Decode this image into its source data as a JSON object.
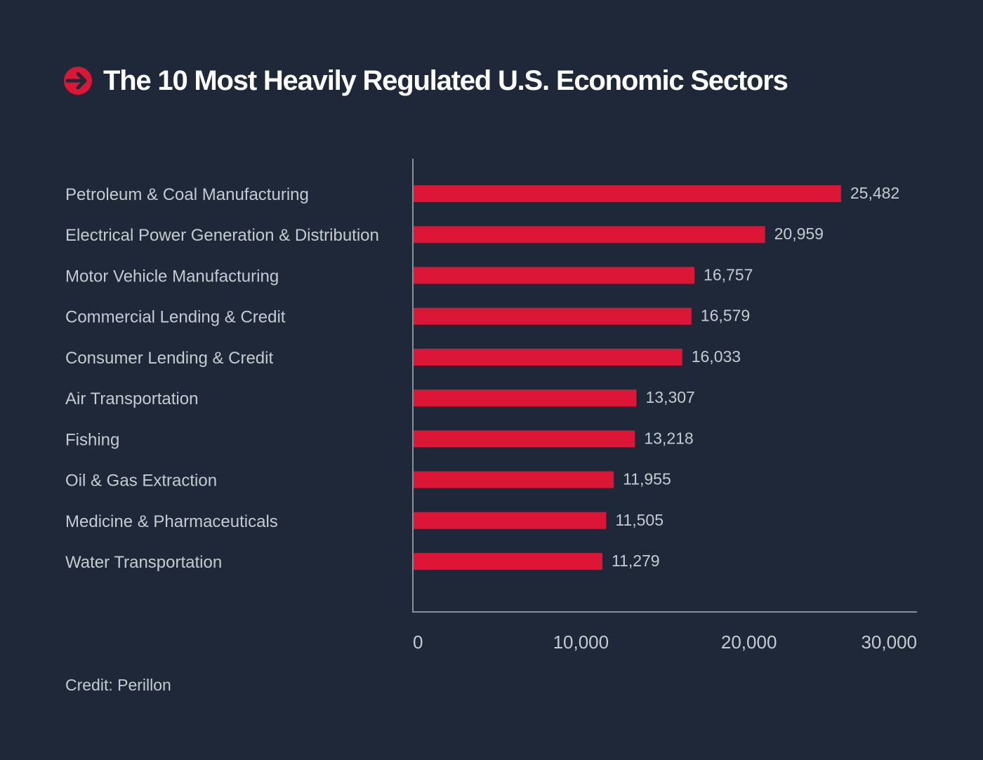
{
  "colors": {
    "background": "#1e2838",
    "bar": "#dc1637",
    "text": "#c5cad3",
    "title": "#ffffff",
    "axis": "#8a909a"
  },
  "header": {
    "icon": "arrow-right-circle-icon",
    "title": "The 10 Most Heavily Regulated U.S. Economic Sectors"
  },
  "footer": {
    "credit": "Credit: Perillon"
  },
  "chart_data": {
    "type": "bar",
    "orientation": "horizontal",
    "title": "The 10 Most Heavily Regulated U.S. Economic Sectors",
    "xlabel": "",
    "ylabel": "",
    "categories": [
      "Petroleum & Coal Manufacturing",
      "Electrical Power Generation & Distribution",
      "Motor Vehicle Manufacturing",
      "Commercial Lending & Credit",
      "Consumer Lending & Credit",
      "Air Transportation",
      "Fishing",
      "Oil & Gas Extraction",
      "Medicine & Pharmaceuticals",
      "Water Transportation"
    ],
    "values": [
      25482,
      20959,
      16757,
      16579,
      16033,
      13307,
      13218,
      11955,
      11505,
      11279
    ],
    "value_labels": [
      "25,482",
      "20,959",
      "16,757",
      "16,579",
      "16,033",
      "13,307",
      "13,218",
      "11,955",
      "11,505",
      "11,279"
    ],
    "xlim": [
      0,
      30000
    ],
    "xticks": [
      0,
      10000,
      20000,
      30000
    ],
    "xtick_labels": [
      "0",
      "10,000",
      "20,000",
      "30,000"
    ],
    "grid": false,
    "legend": "none"
  }
}
